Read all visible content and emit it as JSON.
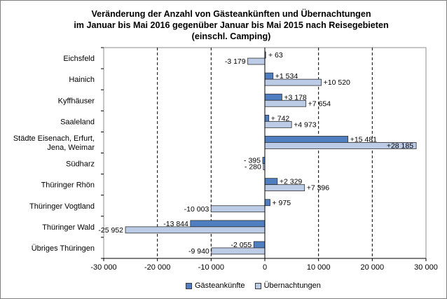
{
  "title_lines": [
    "Veränderung der Anzahl von Gästeankünften und Übernachtungen",
    "im Januar bis Mai 2016 gegenüber Januar bis Mai 2015 nach Reisegebieten",
    "(einschl. Camping)"
  ],
  "colors": {
    "guests": "#4f7ec1",
    "overnight": "#bccbe6",
    "bar_border": "#2f2f2f",
    "grid": "#000000"
  },
  "chart_data": {
    "type": "bar",
    "orientation": "horizontal",
    "categories": [
      [
        "Eichsfeld"
      ],
      [
        "Hainich"
      ],
      [
        "Kyffhäuser"
      ],
      [
        "Saaleland"
      ],
      [
        "Städte Eisenach, Erfurt,",
        "Jena, Weimar"
      ],
      [
        "Südharz"
      ],
      [
        "Thüringer Rhön"
      ],
      [
        "Thüringer Vogtland"
      ],
      [
        "Thüringer Wald"
      ],
      [
        "Übriges Thüringen"
      ]
    ],
    "series": [
      {
        "name": "Gästeankünfte",
        "values": [
          63,
          1534,
          3178,
          742,
          15481,
          -395,
          2329,
          975,
          -13844,
          -2055
        ],
        "labels": [
          "+ 63",
          "+1 534",
          "+3 178",
          "+ 742",
          "+15 481",
          "- 395",
          "+2 329",
          "+ 975",
          "-13 844",
          "-2 055"
        ]
      },
      {
        "name": "Übernachtungen",
        "values": [
          -3179,
          10520,
          7654,
          4973,
          28185,
          -280,
          7396,
          -10003,
          -25952,
          -9940
        ],
        "labels": [
          "-3 179",
          "+10 520",
          "+7 654",
          "+4 973",
          "+28 185",
          "- 280",
          "+7 396",
          "-10 003",
          "-25 952",
          "-9 940"
        ]
      }
    ],
    "xlim": [
      -30000,
      30000
    ],
    "xticks": [
      -30000,
      -20000,
      -10000,
      0,
      10000,
      20000,
      30000
    ],
    "xtick_labels": [
      "-30 000",
      "-20 000",
      "-10 000",
      "0",
      "10 000",
      "20 000",
      "30 000"
    ],
    "grid": "vertical dashed",
    "legend_position": "bottom"
  }
}
